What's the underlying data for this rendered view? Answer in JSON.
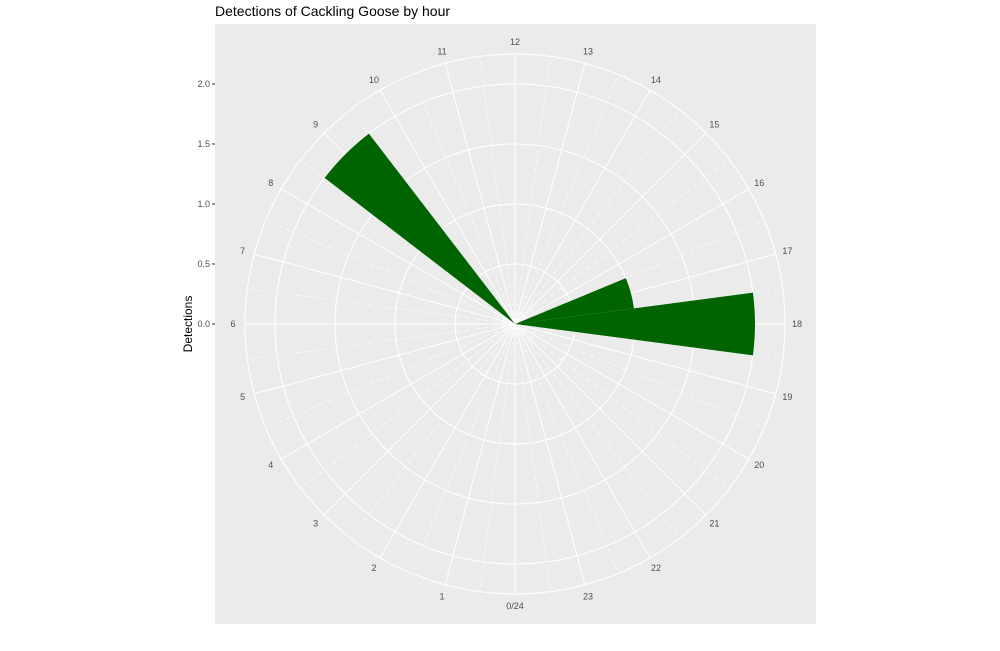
{
  "chart_data": {
    "type": "bar",
    "coord": "polar",
    "title": "Detections of Cackling Goose by hour",
    "ylabel": "Detections",
    "xlabel": "",
    "categories": [
      "0/24",
      "1",
      "2",
      "3",
      "4",
      "5",
      "6",
      "7",
      "8",
      "9",
      "10",
      "11",
      "12",
      "13",
      "14",
      "15",
      "16",
      "17",
      "18",
      "19",
      "20",
      "21",
      "22",
      "23"
    ],
    "ylim": [
      0,
      2.0
    ],
    "y_ticks": [
      "0.0",
      "0.5",
      "1.0",
      "1.5",
      "2.0"
    ],
    "y_tick_values": [
      0,
      0.5,
      1.0,
      1.5,
      2.0
    ],
    "bars": [
      {
        "hour": 9,
        "value": 2.0
      },
      {
        "hour": 17,
        "value": 1.0
      },
      {
        "hour": 18,
        "value": 2.0
      }
    ],
    "bar_color": "#006400",
    "panel_color": "#ebebeb",
    "grid": true
  }
}
